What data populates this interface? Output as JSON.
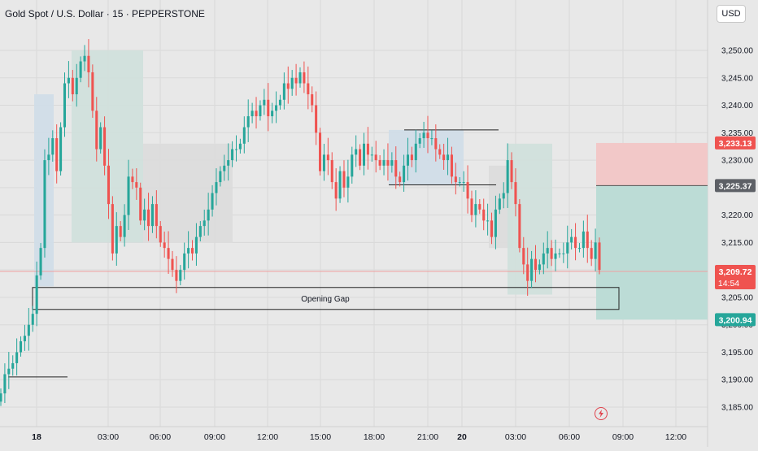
{
  "header": {
    "title": "Gold Spot / U.S. Dollar · 15 · PEPPERSTONE",
    "currency": "USD"
  },
  "colors": {
    "bull": "#26a69a",
    "bear": "#ef5350",
    "background": "#e8e8e8",
    "grid": "#d9d9d9",
    "stop_zone": "#f2c8c8",
    "target_zone": "#bcdcd6",
    "fvg_green": "#cfe0dc",
    "fvg_blue": "#cfdde8",
    "fvg_grey": "#dcdcdc"
  },
  "annotations": {
    "opening_gap": "Opening Gap"
  },
  "price_tags": {
    "stop": "3,233.13",
    "entry": "3,225.37",
    "current": "3,209.72",
    "countdown": "14:54",
    "target": "3,200.94"
  },
  "chart_data": {
    "type": "candlestick",
    "title": "Gold Spot / U.S. Dollar · 15 · PEPPERSTONE",
    "y_ticks": [
      "3,250.00",
      "3,245.00",
      "3,240.00",
      "3,235.00",
      "3,230.00",
      "3,225.00",
      "3,220.00",
      "3,215.00",
      "3,210.00",
      "3,205.00",
      "3,200.00",
      "3,195.00",
      "3,190.00",
      "3,185.00"
    ],
    "y_tick_values": [
      3250,
      3245,
      3240,
      3235,
      3230,
      3225,
      3220,
      3215,
      3210,
      3205,
      3200,
      3195,
      3190,
      3185
    ],
    "x_ticks": [
      "18",
      "03:00",
      "06:00",
      "09:00",
      "12:00",
      "15:00",
      "18:00",
      "21:00",
      "20",
      "03:00",
      "06:00",
      "09:00",
      "12:00"
    ],
    "ylim": [
      3183.5,
      3254.5
    ],
    "grid": true,
    "closes": [
      3187.5,
      3191,
      3192,
      3193,
      3195,
      3197,
      3198,
      3200,
      3202,
      3209,
      3214,
      3230,
      3231,
      3234,
      3228,
      3236,
      3244,
      3245,
      3242,
      3245,
      3248,
      3249,
      3246,
      3239,
      3232,
      3236,
      3229,
      3222,
      3213,
      3218,
      3216,
      3220,
      3227,
      3226,
      3225,
      3219,
      3221,
      3218,
      3222,
      3218,
      3215,
      3214,
      3212,
      3210,
      3208,
      3210,
      3213,
      3214,
      3213,
      3216,
      3218,
      3219,
      3221,
      3224,
      3226,
      3228,
      3229,
      3230,
      3232,
      3232,
      3233,
      3236,
      3238,
      3239,
      3238,
      3240,
      3241,
      3238,
      3239,
      3240,
      3241,
      3244,
      3243,
      3245,
      3244,
      3246,
      3244,
      3242,
      3240,
      3235,
      3228,
      3231,
      3230,
      3226,
      3223,
      3228,
      3225,
      3227,
      3231,
      3232,
      3229,
      3233,
      3231,
      3231,
      3230,
      3229,
      3230,
      3229,
      3230,
      3227,
      3226,
      3229,
      3231,
      3230,
      3233,
      3234,
      3235,
      3234,
      3234,
      3232,
      3231,
      3230,
      3231,
      3227,
      3226,
      3226,
      3226,
      3223,
      3220,
      3222,
      3221,
      3219,
      3219,
      3216,
      3221,
      3223,
      3224,
      3230,
      3226,
      3222,
      3214,
      3211,
      3208,
      3212,
      3210,
      3211,
      3213,
      3214,
      3212,
      3213,
      3213,
      3213,
      3215,
      3216,
      3214,
      3214,
      3217,
      3214,
      3212,
      3215,
      3210
    ],
    "price_tags": [
      3233.13,
      3225.37,
      3209.72,
      3200.94
    ]
  }
}
